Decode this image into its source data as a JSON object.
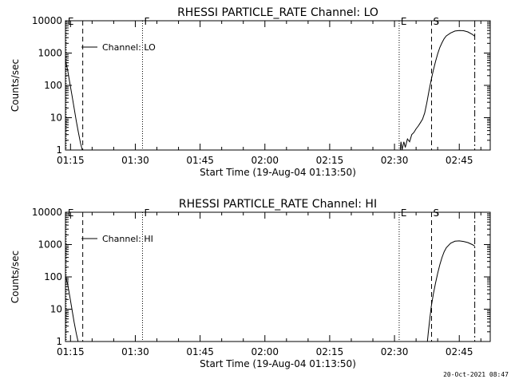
{
  "chart_data": [
    {
      "type": "line",
      "title": "RHESSI PARTICLE_RATE Channel: LO",
      "xlabel": "Start Time (19-Aug-04 01:13:50)",
      "ylabel": "Counts/sec",
      "y_scale": "log",
      "ylim": [
        1,
        10000
      ],
      "xlim": [
        "01:13:50",
        "02:52:10"
      ],
      "x_ticks": [
        "01:15",
        "01:30",
        "01:45",
        "02:00",
        "02:15",
        "02:30",
        "02:45"
      ],
      "y_ticks": [
        "1",
        "10",
        "100",
        "1000",
        "10000"
      ],
      "legend": {
        "label": "Channel: LO",
        "placement": "top-left"
      },
      "markers": [
        {
          "label": "E",
          "time": "01:14:00",
          "style": "dotted"
        },
        {
          "label": "",
          "time": "01:17:50",
          "style": "dashed"
        },
        {
          "label": "F",
          "time": "01:31:40",
          "style": "dotted"
        },
        {
          "label": "E",
          "time": "02:31:05",
          "style": "dotted"
        },
        {
          "label": "S",
          "time": "02:38:35",
          "style": "dashed"
        },
        {
          "label": "",
          "time": "02:48:35",
          "style": "dash-dot"
        }
      ],
      "series": [
        {
          "segments": [
            [
              [
                "01:13:50",
                600
              ],
              [
                "01:14:20",
                300
              ],
              [
                "01:14:50",
                120
              ],
              [
                "01:15:20",
                50
              ],
              [
                "01:15:50",
                20
              ],
              [
                "01:16:20",
                8
              ],
              [
                "01:16:50",
                3.5
              ],
              [
                "01:17:20",
                1.6
              ],
              [
                "01:17:50",
                0.9
              ]
            ],
            [
              [
                "02:31:20",
                1.0
              ],
              [
                "02:31:30",
                1.8
              ],
              [
                "02:31:45",
                1.0
              ],
              [
                "02:32:10",
                1.8
              ],
              [
                "02:32:30",
                1.2
              ],
              [
                "02:33:00",
                2.2
              ],
              [
                "02:33:30",
                1.8
              ],
              [
                "02:34:00",
                3.0
              ],
              [
                "02:34:30",
                3.5
              ],
              [
                "02:35:00",
                4.5
              ],
              [
                "02:35:30",
                5.5
              ],
              [
                "02:36:00",
                7
              ],
              [
                "02:36:30",
                9
              ],
              [
                "02:37:00",
                14
              ],
              [
                "02:37:30",
                30
              ],
              [
                "02:38:00",
                70
              ],
              [
                "02:38:30",
                150
              ],
              [
                "02:39:00",
                300
              ],
              [
                "02:39:30",
                550
              ],
              [
                "02:40:00",
                950
              ],
              [
                "02:40:30",
                1500
              ],
              [
                "02:41:00",
                2100
              ],
              [
                "02:41:30",
                2800
              ],
              [
                "02:42:00",
                3400
              ],
              [
                "02:43:00",
                4200
              ],
              [
                "02:44:00",
                4800
              ],
              [
                "02:45:00",
                5000
              ],
              [
                "02:46:00",
                4900
              ],
              [
                "02:47:00",
                4500
              ],
              [
                "02:48:00",
                3800
              ],
              [
                "02:48:35",
                3300
              ]
            ]
          ]
        }
      ]
    },
    {
      "type": "line",
      "title": "RHESSI PARTICLE_RATE Channel: HI",
      "xlabel": "Start Time (19-Aug-04 01:13:50)",
      "ylabel": "Counts/sec",
      "y_scale": "log",
      "ylim": [
        1,
        10000
      ],
      "xlim": [
        "01:13:50",
        "02:52:10"
      ],
      "x_ticks": [
        "01:15",
        "01:30",
        "01:45",
        "02:00",
        "02:15",
        "02:30",
        "02:45"
      ],
      "y_ticks": [
        "1",
        "10",
        "100",
        "1000",
        "10000"
      ],
      "legend": {
        "label": "Channel: HI",
        "placement": "top-left"
      },
      "markers": [
        {
          "label": "E",
          "time": "01:14:00",
          "style": "dotted"
        },
        {
          "label": "",
          "time": "01:17:50",
          "style": "dashed"
        },
        {
          "label": "F",
          "time": "01:31:40",
          "style": "dotted"
        },
        {
          "label": "E",
          "time": "02:31:05",
          "style": "dotted"
        },
        {
          "label": "S",
          "time": "02:38:35",
          "style": "dashed"
        },
        {
          "label": "",
          "time": "02:48:35",
          "style": "dash-dot"
        }
      ],
      "series": [
        {
          "segments": [
            [
              [
                "01:13:50",
                110
              ],
              [
                "01:14:20",
                60
              ],
              [
                "01:14:50",
                25
              ],
              [
                "01:15:20",
                10
              ],
              [
                "01:15:50",
                4
              ],
              [
                "01:16:20",
                1.8
              ],
              [
                "01:16:50",
                0.9
              ]
            ],
            [
              [
                "02:37:35",
                0.9
              ],
              [
                "02:37:50",
                2
              ],
              [
                "02:38:10",
                5
              ],
              [
                "02:38:30",
                12
              ],
              [
                "02:39:00",
                30
              ],
              [
                "02:39:30",
                65
              ],
              [
                "02:40:00",
                130
              ],
              [
                "02:40:30",
                240
              ],
              [
                "02:41:00",
                400
              ],
              [
                "02:41:30",
                600
              ],
              [
                "02:42:00",
                800
              ],
              [
                "02:43:00",
                1100
              ],
              [
                "02:44:00",
                1270
              ],
              [
                "02:45:00",
                1300
              ],
              [
                "02:46:00",
                1250
              ],
              [
                "02:47:00",
                1150
              ],
              [
                "02:48:00",
                1000
              ],
              [
                "02:48:35",
                900
              ]
            ]
          ]
        }
      ]
    }
  ],
  "footer": {
    "timestamp": "20-Oct-2021 08:47"
  }
}
